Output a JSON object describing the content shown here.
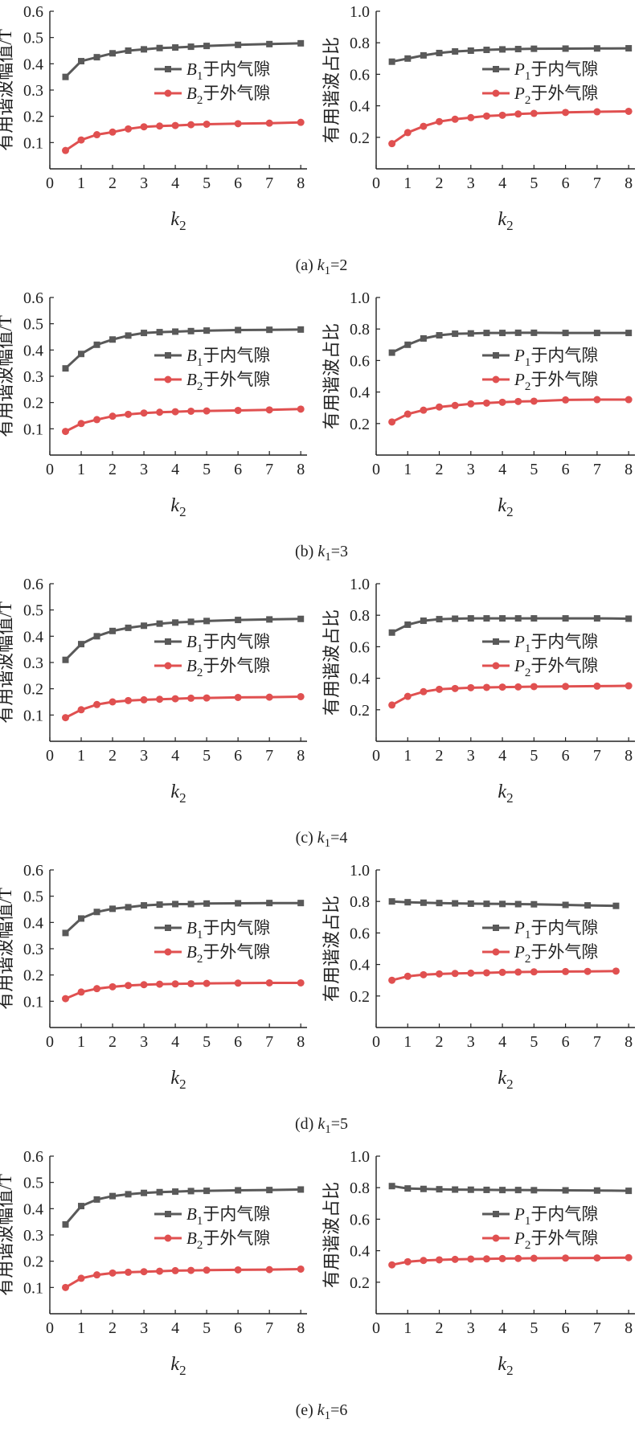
{
  "colors": {
    "series1": "#595959",
    "series2": "#e05050",
    "axis": "#222222"
  },
  "panels": [
    {
      "caption": {
        "prefix": "(a) ",
        "var": "k",
        "sub": "1",
        "suffix": "=2"
      },
      "charts": [
        {
          "type": "line",
          "ylabel": "有用谐波幅值/T",
          "x": [
            0.5,
            1,
            1.5,
            2,
            2.5,
            3,
            3.5,
            4,
            4.5,
            5,
            6,
            7,
            8
          ],
          "yticks": [
            "0.1",
            "0.2",
            "0.3",
            "0.4",
            "0.5",
            "0.6"
          ],
          "ylim": [
            0,
            0.6
          ],
          "xticks": [
            "0",
            "1",
            "2",
            "3",
            "4",
            "5",
            "6",
            "7",
            "8"
          ],
          "xlabel": {
            "var": "k",
            "sub": "2"
          },
          "series": [
            {
              "name": {
                "var": "B",
                "sub": "1",
                "text": "于内气隙"
              },
              "marker": "square",
              "values": [
                0.35,
                0.41,
                0.425,
                0.44,
                0.45,
                0.455,
                0.46,
                0.462,
                0.465,
                0.468,
                0.472,
                0.475,
                0.478
              ]
            },
            {
              "name": {
                "var": "B",
                "sub": "2",
                "text": "于外气隙"
              },
              "marker": "circle",
              "values": [
                0.07,
                0.11,
                0.13,
                0.14,
                0.152,
                0.16,
                0.163,
                0.165,
                0.168,
                0.17,
                0.172,
                0.174,
                0.177
              ]
            }
          ]
        },
        {
          "type": "line",
          "ylabel": "有用谐波占比",
          "x": [
            0.5,
            1,
            1.5,
            2,
            2.5,
            3,
            3.5,
            4,
            4.5,
            5,
            6,
            7,
            8
          ],
          "yticks": [
            "0.2",
            "0.4",
            "0.6",
            "0.8",
            "1.0"
          ],
          "ylim": [
            0,
            1.0
          ],
          "xticks": [
            "0",
            "1",
            "2",
            "3",
            "4",
            "5",
            "6",
            "7",
            "8"
          ],
          "xlabel": {
            "var": "k",
            "sub": "2"
          },
          "series": [
            {
              "name": {
                "var": "P",
                "sub": "1",
                "text": "于内气隙"
              },
              "marker": "square",
              "values": [
                0.68,
                0.7,
                0.72,
                0.735,
                0.745,
                0.75,
                0.755,
                0.758,
                0.76,
                0.762,
                0.763,
                0.764,
                0.765
              ]
            },
            {
              "name": {
                "var": "P",
                "sub": "2",
                "text": "于外气隙"
              },
              "marker": "circle",
              "values": [
                0.16,
                0.23,
                0.27,
                0.3,
                0.315,
                0.325,
                0.335,
                0.34,
                0.348,
                0.352,
                0.358,
                0.362,
                0.365
              ]
            }
          ]
        }
      ]
    },
    {
      "caption": {
        "prefix": "(b) ",
        "var": "k",
        "sub": "1",
        "suffix": "=3"
      },
      "charts": [
        {
          "type": "line",
          "ylabel": "有用谐波幅值/T",
          "x": [
            0.5,
            1,
            1.5,
            2,
            2.5,
            3,
            3.5,
            4,
            4.5,
            5,
            6,
            7,
            8
          ],
          "yticks": [
            "0.1",
            "0.2",
            "0.3",
            "0.4",
            "0.5",
            "0.6"
          ],
          "ylim": [
            0,
            0.6
          ],
          "xticks": [
            "0",
            "1",
            "2",
            "3",
            "4",
            "5",
            "6",
            "7",
            "8"
          ],
          "xlabel": {
            "var": "k",
            "sub": "2"
          },
          "series": [
            {
              "name": {
                "var": "B",
                "sub": "1",
                "text": "于内气隙"
              },
              "marker": "square",
              "values": [
                0.33,
                0.385,
                0.42,
                0.44,
                0.455,
                0.465,
                0.468,
                0.47,
                0.472,
                0.474,
                0.476,
                0.477,
                0.478
              ]
            },
            {
              "name": {
                "var": "B",
                "sub": "2",
                "text": "于外气隙"
              },
              "marker": "circle",
              "values": [
                0.09,
                0.12,
                0.135,
                0.148,
                0.155,
                0.16,
                0.163,
                0.165,
                0.167,
                0.168,
                0.17,
                0.172,
                0.175
              ]
            }
          ]
        },
        {
          "type": "line",
          "ylabel": "有用谐波占比",
          "x": [
            0.5,
            1,
            1.5,
            2,
            2.5,
            3,
            3.5,
            4,
            4.5,
            5,
            6,
            7,
            8
          ],
          "yticks": [
            "0.2",
            "0.4",
            "0.6",
            "0.8",
            "1.0"
          ],
          "ylim": [
            0,
            1.0
          ],
          "xticks": [
            "0",
            "1",
            "2",
            "3",
            "4",
            "5",
            "6",
            "7",
            "8"
          ],
          "xlabel": {
            "var": "k",
            "sub": "2"
          },
          "series": [
            {
              "name": {
                "var": "P",
                "sub": "1",
                "text": "于内气隙"
              },
              "marker": "square",
              "values": [
                0.65,
                0.7,
                0.74,
                0.76,
                0.77,
                0.772,
                0.775,
                0.775,
                0.776,
                0.776,
                0.775,
                0.775,
                0.775
              ]
            },
            {
              "name": {
                "var": "P",
                "sub": "2",
                "text": "于外气隙"
              },
              "marker": "circle",
              "values": [
                0.21,
                0.26,
                0.285,
                0.305,
                0.315,
                0.325,
                0.33,
                0.335,
                0.34,
                0.342,
                0.35,
                0.352,
                0.352
              ]
            }
          ]
        }
      ]
    },
    {
      "caption": {
        "prefix": "(c) ",
        "var": "k",
        "sub": "1",
        "suffix": "=4"
      },
      "charts": [
        {
          "type": "line",
          "ylabel": "有用谐波幅值/T",
          "x": [
            0.5,
            1,
            1.5,
            2,
            2.5,
            3,
            3.5,
            4,
            4.5,
            5,
            6,
            7,
            8
          ],
          "yticks": [
            "0.1",
            "0.2",
            "0.3",
            "0.4",
            "0.5",
            "0.6"
          ],
          "ylim": [
            0,
            0.6
          ],
          "xticks": [
            "0",
            "1",
            "2",
            "3",
            "4",
            "5",
            "6",
            "7",
            "8"
          ],
          "xlabel": {
            "var": "k",
            "sub": "2"
          },
          "series": [
            {
              "name": {
                "var": "B",
                "sub": "1",
                "text": "于内气隙"
              },
              "marker": "square",
              "values": [
                0.31,
                0.37,
                0.4,
                0.42,
                0.432,
                0.44,
                0.448,
                0.452,
                0.455,
                0.458,
                0.462,
                0.464,
                0.466
              ]
            },
            {
              "name": {
                "var": "B",
                "sub": "2",
                "text": "于外气隙"
              },
              "marker": "circle",
              "values": [
                0.09,
                0.12,
                0.14,
                0.15,
                0.155,
                0.158,
                0.16,
                0.162,
                0.164,
                0.165,
                0.167,
                0.168,
                0.17
              ]
            }
          ]
        },
        {
          "type": "line",
          "ylabel": "有用谐波占比",
          "x": [
            0.5,
            1,
            1.5,
            2,
            2.5,
            3,
            3.5,
            4,
            4.5,
            5,
            6,
            7,
            8
          ],
          "yticks": [
            "0.2",
            "0.4",
            "0.6",
            "0.8",
            "1.0"
          ],
          "ylim": [
            0,
            1.0
          ],
          "xticks": [
            "0",
            "1",
            "2",
            "3",
            "4",
            "5",
            "6",
            "7",
            "8"
          ],
          "xlabel": {
            "var": "k",
            "sub": "2"
          },
          "series": [
            {
              "name": {
                "var": "P",
                "sub": "1",
                "text": "于内气隙"
              },
              "marker": "square",
              "values": [
                0.69,
                0.74,
                0.765,
                0.775,
                0.778,
                0.78,
                0.78,
                0.78,
                0.78,
                0.78,
                0.78,
                0.78,
                0.778
              ]
            },
            {
              "name": {
                "var": "P",
                "sub": "2",
                "text": "于外气隙"
              },
              "marker": "circle",
              "values": [
                0.23,
                0.285,
                0.315,
                0.33,
                0.335,
                0.34,
                0.342,
                0.344,
                0.345,
                0.347,
                0.348,
                0.35,
                0.352
              ]
            }
          ]
        }
      ]
    },
    {
      "caption": {
        "prefix": "(d)  ",
        "var": "k",
        "sub": "1",
        "suffix": "=5"
      },
      "charts": [
        {
          "type": "line",
          "ylabel": "有用谐波幅值/T",
          "x": [
            0.5,
            1,
            1.5,
            2,
            2.5,
            3,
            3.5,
            4,
            4.5,
            5,
            6,
            7,
            8
          ],
          "yticks": [
            "0.1",
            "0.2",
            "0.3",
            "0.4",
            "0.5",
            "0.6"
          ],
          "ylim": [
            0,
            0.6
          ],
          "xticks": [
            "0",
            "1",
            "2",
            "3",
            "4",
            "5",
            "6",
            "7",
            "8"
          ],
          "xlabel": {
            "var": "k",
            "sub": "2"
          },
          "series": [
            {
              "name": {
                "var": "B",
                "sub": "1",
                "text": "于内气隙"
              },
              "marker": "square",
              "values": [
                0.36,
                0.415,
                0.44,
                0.452,
                0.458,
                0.465,
                0.468,
                0.47,
                0.47,
                0.472,
                0.473,
                0.474,
                0.474
              ]
            },
            {
              "name": {
                "var": "B",
                "sub": "2",
                "text": "于外气隙"
              },
              "marker": "circle",
              "values": [
                0.11,
                0.135,
                0.148,
                0.155,
                0.16,
                0.163,
                0.165,
                0.166,
                0.167,
                0.168,
                0.169,
                0.17,
                0.17
              ]
            }
          ]
        },
        {
          "type": "line",
          "ylabel": "有用谐波占比",
          "x": [
            0.5,
            1,
            1.5,
            2,
            2.5,
            3,
            3.5,
            4,
            4.5,
            5,
            6,
            6.7,
            7.6
          ],
          "yticks": [
            "0.2",
            "0.4",
            "0.6",
            "0.8",
            "1.0"
          ],
          "ylim": [
            0,
            1.0
          ],
          "xticks": [
            "0",
            "1",
            "2",
            "3",
            "4",
            "5",
            "6",
            "7",
            "8"
          ],
          "xlabel": {
            "var": "k",
            "sub": "2"
          },
          "series": [
            {
              "name": {
                "var": "P",
                "sub": "1",
                "text": "于内气隙"
              },
              "marker": "square",
              "values": [
                0.8,
                0.795,
                0.792,
                0.79,
                0.788,
                0.786,
                0.785,
                0.784,
                0.783,
                0.782,
                0.778,
                0.775,
                0.772
              ]
            },
            {
              "name": {
                "var": "P",
                "sub": "2",
                "text": "于外气隙"
              },
              "marker": "circle",
              "values": [
                0.3,
                0.325,
                0.335,
                0.34,
                0.343,
                0.345,
                0.347,
                0.35,
                0.352,
                0.353,
                0.355,
                0.356,
                0.358
              ]
            }
          ]
        }
      ]
    },
    {
      "caption": {
        "prefix": "(e) ",
        "var": "k",
        "sub": "1",
        "suffix": "=6"
      },
      "charts": [
        {
          "type": "line",
          "ylabel": "有用谐波幅值/T",
          "x": [
            0.5,
            1,
            1.5,
            2,
            2.5,
            3,
            3.5,
            4,
            4.5,
            5,
            6,
            7,
            8
          ],
          "yticks": [
            "0.1",
            "0.2",
            "0.3",
            "0.4",
            "0.5",
            "0.6"
          ],
          "ylim": [
            0,
            0.6
          ],
          "xticks": [
            "0",
            "1",
            "2",
            "3",
            "4",
            "5",
            "6",
            "7",
            "8"
          ],
          "xlabel": {
            "var": "k",
            "sub": "2"
          },
          "series": [
            {
              "name": {
                "var": "B",
                "sub": "1",
                "text": "于内气隙"
              },
              "marker": "square",
              "values": [
                0.34,
                0.41,
                0.435,
                0.448,
                0.455,
                0.46,
                0.463,
                0.465,
                0.467,
                0.468,
                0.47,
                0.471,
                0.473
              ]
            },
            {
              "name": {
                "var": "B",
                "sub": "2",
                "text": "于外气隙"
              },
              "marker": "circle",
              "values": [
                0.1,
                0.135,
                0.148,
                0.155,
                0.158,
                0.16,
                0.162,
                0.164,
                0.165,
                0.166,
                0.167,
                0.168,
                0.17
              ]
            }
          ]
        },
        {
          "type": "line",
          "ylabel": "有用谐波占比",
          "x": [
            0.5,
            1,
            1.5,
            2,
            2.5,
            3,
            3.5,
            4,
            4.5,
            5,
            6,
            7,
            8
          ],
          "yticks": [
            "0.2",
            "0.4",
            "0.6",
            "0.8",
            "1.0"
          ],
          "ylim": [
            0,
            1.0
          ],
          "xticks": [
            "0",
            "1",
            "2",
            "3",
            "4",
            "5",
            "6",
            "7",
            "8"
          ],
          "xlabel": {
            "var": "k",
            "sub": "2"
          },
          "series": [
            {
              "name": {
                "var": "P",
                "sub": "1",
                "text": "于内气隙"
              },
              "marker": "square",
              "values": [
                0.81,
                0.795,
                0.792,
                0.79,
                0.788,
                0.787,
                0.786,
                0.785,
                0.785,
                0.784,
                0.783,
                0.782,
                0.78
              ]
            },
            {
              "name": {
                "var": "P",
                "sub": "2",
                "text": "于外气隙"
              },
              "marker": "circle",
              "values": [
                0.31,
                0.33,
                0.338,
                0.342,
                0.345,
                0.347,
                0.348,
                0.35,
                0.351,
                0.352,
                0.353,
                0.354,
                0.356
              ]
            }
          ]
        }
      ]
    }
  ]
}
